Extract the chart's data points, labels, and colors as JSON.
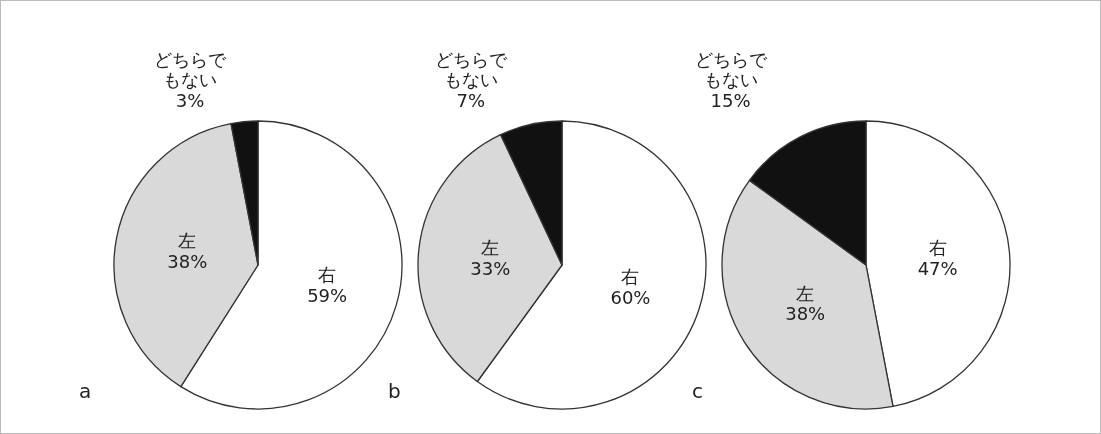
{
  "chart_data": [
    {
      "type": "pie",
      "categories": [
        "右",
        "左",
        "どちらでもない"
      ],
      "values": [
        59,
        38,
        3
      ],
      "colors": [
        "#ffffff",
        "#d9d9d9",
        "#111111"
      ],
      "value_labels": [
        "59%",
        "38%",
        "3%"
      ],
      "annotations": [
        "a"
      ]
    },
    {
      "type": "pie",
      "categories": [
        "右",
        "左",
        "どちらでもない"
      ],
      "values": [
        60,
        33,
        7
      ],
      "colors": [
        "#ffffff",
        "#d9d9d9",
        "#111111"
      ],
      "value_labels": [
        "60%",
        "33%",
        "7%"
      ],
      "annotations": [
        "b"
      ]
    },
    {
      "type": "pie",
      "categories": [
        "右",
        "左",
        "どちらでもない"
      ],
      "values": [
        47,
        38,
        15
      ],
      "colors": [
        "#ffffff",
        "#d9d9d9",
        "#111111"
      ],
      "value_labels": [
        "47%",
        "38%",
        "15%"
      ],
      "annotations": [
        "c"
      ]
    }
  ]
}
